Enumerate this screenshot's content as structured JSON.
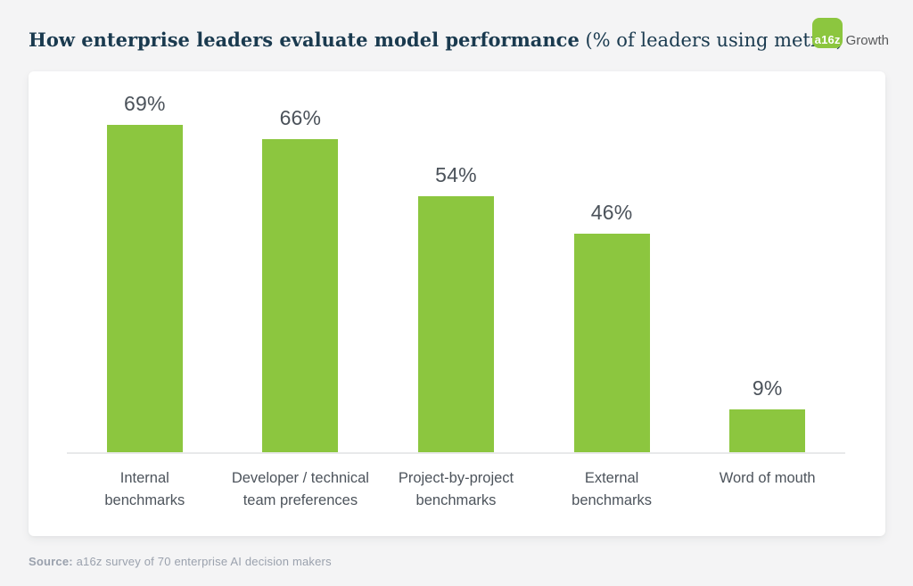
{
  "header": {
    "title_bold": "How enterprise leaders evaluate model performance",
    "title_note": " (% of leaders using metric)",
    "logo_mark": "a16z",
    "logo_text": "Growth"
  },
  "chart_data": {
    "type": "bar",
    "title": "How enterprise leaders evaluate model performance",
    "subtitle": "% of leaders using metric",
    "categories": [
      "Internal benchmarks",
      "Developer / technical team preferences",
      "Project-by-project benchmarks",
      "External benchmarks",
      "Word of mouth"
    ],
    "category_lines": [
      [
        "Internal",
        "benchmarks"
      ],
      [
        "Developer / technical",
        "team preferences"
      ],
      [
        "Project-by-project",
        "benchmarks"
      ],
      [
        "External",
        "benchmarks"
      ],
      [
        "Word of mouth"
      ]
    ],
    "values": [
      69,
      66,
      54,
      46,
      9
    ],
    "value_labels": [
      "69%",
      "66%",
      "54%",
      "46%",
      "9%"
    ],
    "xlabel": "",
    "ylabel": "",
    "ylim": [
      0,
      80
    ],
    "grid": false,
    "legend": false,
    "bar_color": "#8cc63f",
    "value_label_color": "#4b525a"
  },
  "footer": {
    "source_label": "Source:",
    "source_text": " a16z survey of 70 enterprise AI decision makers"
  },
  "colors": {
    "accent_green": "#8cc63f",
    "title_navy": "#1a3a4f",
    "background": "#f4f4f5",
    "card": "#ffffff",
    "axis_line": "#e8e9ea",
    "category_text": "#4d545c",
    "source_text": "#9aa1ad",
    "logo_growth_text": "#58595b"
  }
}
